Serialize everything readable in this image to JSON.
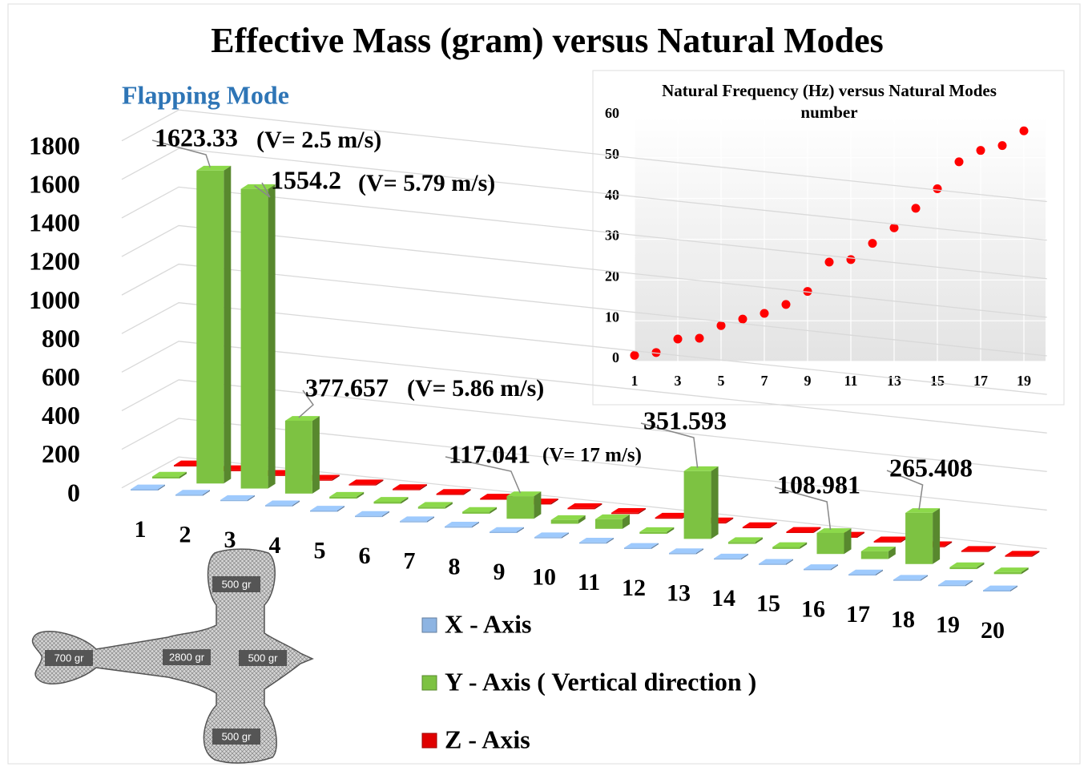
{
  "chart_data": [
    {
      "type": "bar",
      "title": "Effective Mass (gram)  versus Natural Modes",
      "subtitle": "Flapping Mode",
      "categories": [
        "1",
        "2",
        "3",
        "4",
        "5",
        "6",
        "7",
        "8",
        "9",
        "10",
        "11",
        "12",
        "13",
        "14",
        "15",
        "16",
        "17",
        "18",
        "19",
        "20"
      ],
      "series": [
        {
          "name": "X - Axis",
          "color": "#8db4e2",
          "values": [
            5,
            5,
            5,
            5,
            5,
            5,
            5,
            5,
            5,
            5,
            5,
            5,
            5,
            5,
            5,
            5,
            5,
            5,
            5,
            5
          ]
        },
        {
          "name": "Y - Axis ( Vertical direction )",
          "color": "#7dc242",
          "values": [
            10,
            1623.33,
            1554.2,
            377.657,
            10,
            10,
            10,
            10,
            117.041,
            20,
            50,
            10,
            351.593,
            10,
            10,
            108.981,
            40,
            265.408,
            10,
            10
          ]
        },
        {
          "name": "Z - Axis",
          "color": "#e00000",
          "values": [
            5,
            5,
            5,
            5,
            5,
            5,
            5,
            5,
            5,
            5,
            5,
            5,
            5,
            5,
            5,
            5,
            5,
            5,
            5,
            5
          ]
        }
      ],
      "annotations": [
        "(V= 2.5 m/s)",
        "(V= 5.79 m/s)",
        "(V= 5.86 m/s)",
        "(V= 17 m/s)"
      ],
      "ylim": [
        0,
        1800
      ],
      "yticks": [
        0,
        200,
        400,
        600,
        800,
        1000,
        1200,
        1400,
        1600,
        1800
      ],
      "grid": true
    },
    {
      "type": "scatter",
      "title": "Natural Frequency (Hz) versus Natural Modes number",
      "x": [
        1,
        2,
        3,
        4,
        5,
        6,
        7,
        8,
        9,
        10,
        11,
        12,
        13,
        14,
        15,
        16,
        17,
        18,
        19
      ],
      "values": [
        1.5,
        2.2,
        5.5,
        5.7,
        8.8,
        10.4,
        11.8,
        14,
        17.2,
        24.4,
        25,
        29,
        32.8,
        37.6,
        42.4,
        49,
        51.8,
        53,
        56.6
      ],
      "color": "#ff0000",
      "xlim": [
        1,
        20
      ],
      "xticks": [
        1,
        3,
        5,
        7,
        9,
        11,
        13,
        15,
        17,
        19
      ],
      "ylim": [
        0,
        60
      ],
      "yticks": [
        0,
        10,
        20,
        30,
        40,
        50,
        60
      ],
      "grid": true
    }
  ],
  "figure": {
    "labels": [
      "500 gr",
      "700 gr",
      "2800 gr",
      "500 gr",
      "500 gr"
    ]
  }
}
